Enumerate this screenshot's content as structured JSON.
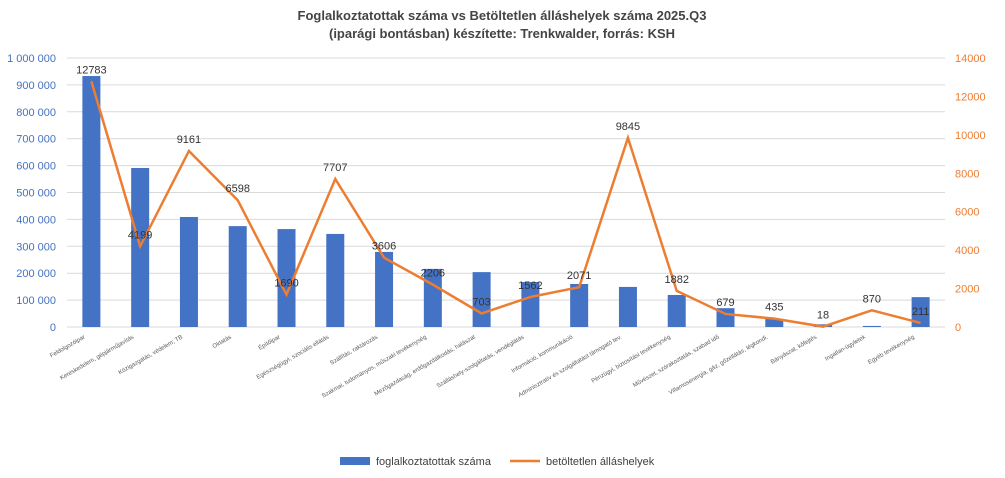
{
  "chart_data": {
    "type": "bar+line",
    "title": [
      "Foglalkoztatottak száma vs Betöltetlen álláshelyek száma 2025.Q3",
      "(iparági bontásban) készítette: Trenkwalder, forrás: KSH"
    ],
    "categories": [
      "Feldolgozóipar",
      "Kereskedelem, gépjárműjavítás",
      "Közigazgatás, védelem; TB",
      "Oktatás",
      "Építőipar",
      "Egészségügyi, szociális ellátás",
      "Szállítás, raktározás",
      "Szakmai, tudományos, műszaki tevékenység",
      "Mezőgazdaság, erdőgazdálkodás, halászat",
      "Szálláshely-szolgáltatás, vendéglátás",
      "Információ, kommunikáció",
      "Adminisztratív és szolgáltatást támogató tev.",
      "Pénzügyi, biztosítási tevékenység",
      "Művészet, szórakoztatás, szabad idő",
      "Villamosenergia, gáz, gőzellátás, légkondi.",
      "Bányászat, kőfejtés",
      "Ingatlan-ügyletek",
      "Egyéb tevékenység"
    ],
    "series": [
      {
        "name": "foglalkoztatottak száma",
        "type": "bar",
        "axis": "left",
        "color": "#4472C4",
        "values": [
          933000,
          591000,
          409000,
          375000,
          364000,
          346000,
          279000,
          216000,
          204000,
          167000,
          160000,
          149000,
          119000,
          70000,
          30000,
          10000,
          4000,
          111000
        ]
      },
      {
        "name": "betöltetlen álláshelyek",
        "type": "line",
        "axis": "right",
        "color": "#ED7D31",
        "values": [
          12783,
          4199,
          9161,
          6598,
          1690,
          7707,
          3606,
          2206,
          703,
          1562,
          2071,
          9845,
          1882,
          679,
          435,
          18,
          870,
          211
        ]
      }
    ],
    "left_axis": {
      "range": [
        0,
        1000000
      ],
      "ticks": [
        "0",
        "100 000",
        "200 000",
        "300 000",
        "400 000",
        "500 000",
        "600 000",
        "700 000",
        "800 000",
        "900 000",
        "1 000 000"
      ],
      "color": "#4472C4"
    },
    "right_axis": {
      "range": [
        0,
        14000
      ],
      "ticks": [
        "0",
        "2000",
        "4000",
        "6000",
        "8000",
        "10000",
        "12000",
        "14000"
      ],
      "color": "#ED7D31"
    },
    "grid": true,
    "legend": "bottom"
  }
}
